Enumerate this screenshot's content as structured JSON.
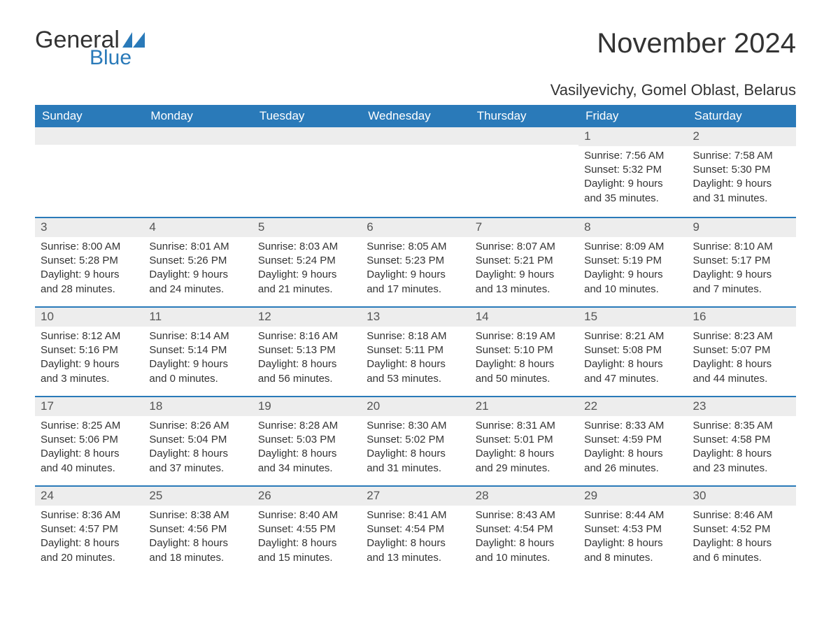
{
  "brand": {
    "general": "General",
    "blue": "Blue",
    "flag_color": "#2a7ab9"
  },
  "title": "November 2024",
  "location": "Vasilyevichy, Gomel Oblast, Belarus",
  "colors": {
    "header_bg": "#2a7ab9",
    "header_text": "#ffffff",
    "row_divider": "#2a7ab9",
    "daynum_bg": "#ededed",
    "text": "#333333",
    "background": "#ffffff"
  },
  "typography": {
    "title_fontsize": 40,
    "location_fontsize": 22,
    "weekday_fontsize": 17,
    "daynum_fontsize": 17,
    "body_fontsize": 15
  },
  "weekdays": [
    "Sunday",
    "Monday",
    "Tuesday",
    "Wednesday",
    "Thursday",
    "Friday",
    "Saturday"
  ],
  "weeks": [
    [
      null,
      null,
      null,
      null,
      null,
      {
        "n": "1",
        "sunrise": "Sunrise: 7:56 AM",
        "sunset": "Sunset: 5:32 PM",
        "d1": "Daylight: 9 hours",
        "d2": "and 35 minutes."
      },
      {
        "n": "2",
        "sunrise": "Sunrise: 7:58 AM",
        "sunset": "Sunset: 5:30 PM",
        "d1": "Daylight: 9 hours",
        "d2": "and 31 minutes."
      }
    ],
    [
      {
        "n": "3",
        "sunrise": "Sunrise: 8:00 AM",
        "sunset": "Sunset: 5:28 PM",
        "d1": "Daylight: 9 hours",
        "d2": "and 28 minutes."
      },
      {
        "n": "4",
        "sunrise": "Sunrise: 8:01 AM",
        "sunset": "Sunset: 5:26 PM",
        "d1": "Daylight: 9 hours",
        "d2": "and 24 minutes."
      },
      {
        "n": "5",
        "sunrise": "Sunrise: 8:03 AM",
        "sunset": "Sunset: 5:24 PM",
        "d1": "Daylight: 9 hours",
        "d2": "and 21 minutes."
      },
      {
        "n": "6",
        "sunrise": "Sunrise: 8:05 AM",
        "sunset": "Sunset: 5:23 PM",
        "d1": "Daylight: 9 hours",
        "d2": "and 17 minutes."
      },
      {
        "n": "7",
        "sunrise": "Sunrise: 8:07 AM",
        "sunset": "Sunset: 5:21 PM",
        "d1": "Daylight: 9 hours",
        "d2": "and 13 minutes."
      },
      {
        "n": "8",
        "sunrise": "Sunrise: 8:09 AM",
        "sunset": "Sunset: 5:19 PM",
        "d1": "Daylight: 9 hours",
        "d2": "and 10 minutes."
      },
      {
        "n": "9",
        "sunrise": "Sunrise: 8:10 AM",
        "sunset": "Sunset: 5:17 PM",
        "d1": "Daylight: 9 hours",
        "d2": "and 7 minutes."
      }
    ],
    [
      {
        "n": "10",
        "sunrise": "Sunrise: 8:12 AM",
        "sunset": "Sunset: 5:16 PM",
        "d1": "Daylight: 9 hours",
        "d2": "and 3 minutes."
      },
      {
        "n": "11",
        "sunrise": "Sunrise: 8:14 AM",
        "sunset": "Sunset: 5:14 PM",
        "d1": "Daylight: 9 hours",
        "d2": "and 0 minutes."
      },
      {
        "n": "12",
        "sunrise": "Sunrise: 8:16 AM",
        "sunset": "Sunset: 5:13 PM",
        "d1": "Daylight: 8 hours",
        "d2": "and 56 minutes."
      },
      {
        "n": "13",
        "sunrise": "Sunrise: 8:18 AM",
        "sunset": "Sunset: 5:11 PM",
        "d1": "Daylight: 8 hours",
        "d2": "and 53 minutes."
      },
      {
        "n": "14",
        "sunrise": "Sunrise: 8:19 AM",
        "sunset": "Sunset: 5:10 PM",
        "d1": "Daylight: 8 hours",
        "d2": "and 50 minutes."
      },
      {
        "n": "15",
        "sunrise": "Sunrise: 8:21 AM",
        "sunset": "Sunset: 5:08 PM",
        "d1": "Daylight: 8 hours",
        "d2": "and 47 minutes."
      },
      {
        "n": "16",
        "sunrise": "Sunrise: 8:23 AM",
        "sunset": "Sunset: 5:07 PM",
        "d1": "Daylight: 8 hours",
        "d2": "and 44 minutes."
      }
    ],
    [
      {
        "n": "17",
        "sunrise": "Sunrise: 8:25 AM",
        "sunset": "Sunset: 5:06 PM",
        "d1": "Daylight: 8 hours",
        "d2": "and 40 minutes."
      },
      {
        "n": "18",
        "sunrise": "Sunrise: 8:26 AM",
        "sunset": "Sunset: 5:04 PM",
        "d1": "Daylight: 8 hours",
        "d2": "and 37 minutes."
      },
      {
        "n": "19",
        "sunrise": "Sunrise: 8:28 AM",
        "sunset": "Sunset: 5:03 PM",
        "d1": "Daylight: 8 hours",
        "d2": "and 34 minutes."
      },
      {
        "n": "20",
        "sunrise": "Sunrise: 8:30 AM",
        "sunset": "Sunset: 5:02 PM",
        "d1": "Daylight: 8 hours",
        "d2": "and 31 minutes."
      },
      {
        "n": "21",
        "sunrise": "Sunrise: 8:31 AM",
        "sunset": "Sunset: 5:01 PM",
        "d1": "Daylight: 8 hours",
        "d2": "and 29 minutes."
      },
      {
        "n": "22",
        "sunrise": "Sunrise: 8:33 AM",
        "sunset": "Sunset: 4:59 PM",
        "d1": "Daylight: 8 hours",
        "d2": "and 26 minutes."
      },
      {
        "n": "23",
        "sunrise": "Sunrise: 8:35 AM",
        "sunset": "Sunset: 4:58 PM",
        "d1": "Daylight: 8 hours",
        "d2": "and 23 minutes."
      }
    ],
    [
      {
        "n": "24",
        "sunrise": "Sunrise: 8:36 AM",
        "sunset": "Sunset: 4:57 PM",
        "d1": "Daylight: 8 hours",
        "d2": "and 20 minutes."
      },
      {
        "n": "25",
        "sunrise": "Sunrise: 8:38 AM",
        "sunset": "Sunset: 4:56 PM",
        "d1": "Daylight: 8 hours",
        "d2": "and 18 minutes."
      },
      {
        "n": "26",
        "sunrise": "Sunrise: 8:40 AM",
        "sunset": "Sunset: 4:55 PM",
        "d1": "Daylight: 8 hours",
        "d2": "and 15 minutes."
      },
      {
        "n": "27",
        "sunrise": "Sunrise: 8:41 AM",
        "sunset": "Sunset: 4:54 PM",
        "d1": "Daylight: 8 hours",
        "d2": "and 13 minutes."
      },
      {
        "n": "28",
        "sunrise": "Sunrise: 8:43 AM",
        "sunset": "Sunset: 4:54 PM",
        "d1": "Daylight: 8 hours",
        "d2": "and 10 minutes."
      },
      {
        "n": "29",
        "sunrise": "Sunrise: 8:44 AM",
        "sunset": "Sunset: 4:53 PM",
        "d1": "Daylight: 8 hours",
        "d2": "and 8 minutes."
      },
      {
        "n": "30",
        "sunrise": "Sunrise: 8:46 AM",
        "sunset": "Sunset: 4:52 PM",
        "d1": "Daylight: 8 hours",
        "d2": "and 6 minutes."
      }
    ]
  ]
}
